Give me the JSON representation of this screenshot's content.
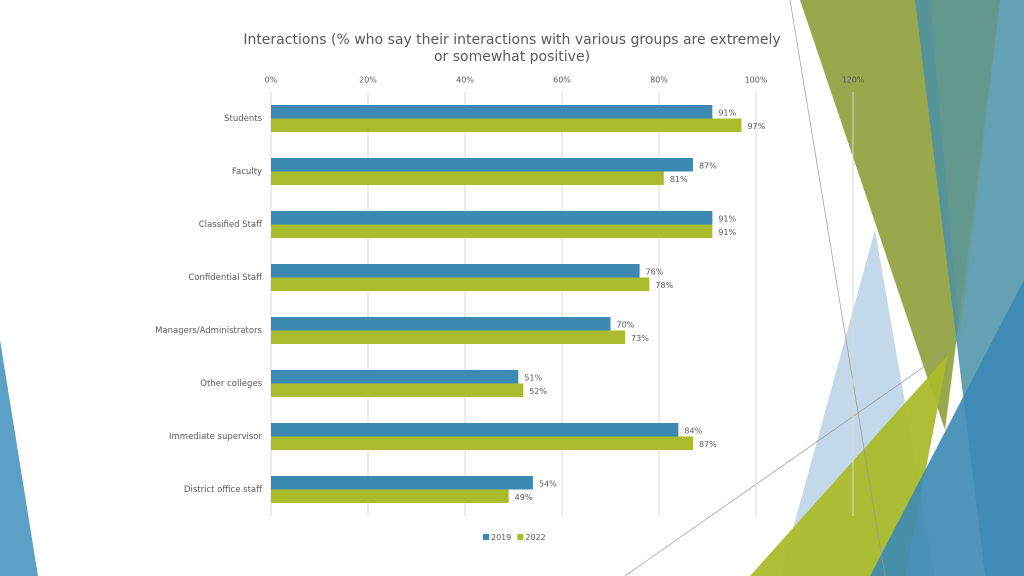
{
  "chart_data": {
    "type": "bar",
    "orientation": "horizontal",
    "title": "Interactions (% who say their interactions with various groups are extremely or somewhat positive)",
    "categories": [
      "Students",
      "Faculty",
      "Classified Staff",
      "Confidential Staff",
      "Managers/Administrators",
      "Other colleges",
      "Immediate supervisor",
      "District office staff"
    ],
    "series": [
      {
        "name": "2019",
        "color": "#3c8ab4",
        "values": [
          91,
          87,
          91,
          76,
          70,
          51,
          84,
          54
        ],
        "value_labels": [
          "91%",
          "87%",
          "91%",
          "76%",
          "70%",
          "51%",
          "84%",
          "54%"
        ]
      },
      {
        "name": "2022",
        "color": "#a9bc2b",
        "values": [
          97,
          81,
          91,
          78,
          73,
          52,
          87,
          49
        ],
        "value_labels": [
          "97%",
          "81%",
          "91%",
          "78%",
          "73%",
          "52%",
          "87%",
          "49%"
        ]
      }
    ],
    "xlim": [
      0,
      120
    ],
    "xticks": [
      {
        "value": 0,
        "label": "0%"
      },
      {
        "value": 20,
        "label": "20%"
      },
      {
        "value": 40,
        "label": "40%"
      },
      {
        "value": 60,
        "label": "60%"
      },
      {
        "value": 80,
        "label": "80%"
      },
      {
        "value": 100,
        "label": "100%"
      },
      {
        "value": 120,
        "label": "120%"
      }
    ],
    "grid": true,
    "legend": "bottom"
  }
}
